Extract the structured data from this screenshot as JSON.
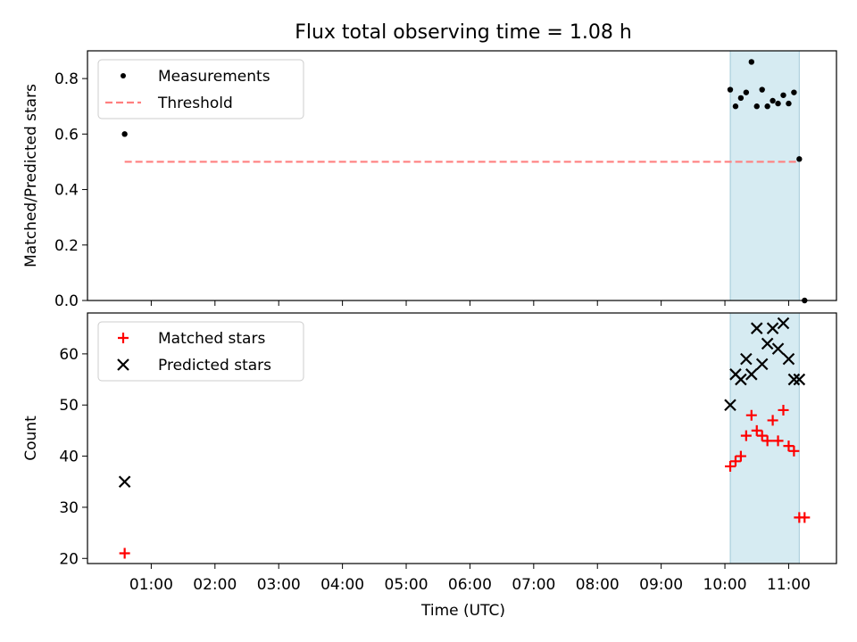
{
  "chart_data": [
    {
      "type": "scatter",
      "title": "Flux total observing time = 1.08 h",
      "ylabel": "Matched/Predicted stars",
      "xlim": [
        "00:00",
        "11:45"
      ],
      "ylim": [
        0,
        0.9
      ],
      "yticks": [
        "0.0",
        "0.2",
        "0.4",
        "0.6",
        "0.8"
      ],
      "shaded_interval": [
        "10:05",
        "11:10"
      ],
      "shade_color": "#add8e6",
      "legend_position": "upper-left",
      "series": [
        {
          "name": "Measurements",
          "marker": "dot",
          "color": "#000000",
          "points": [
            [
              "00:35",
              0.6
            ],
            [
              "10:05",
              0.76
            ],
            [
              "10:10",
              0.7
            ],
            [
              "10:15",
              0.73
            ],
            [
              "10:20",
              0.75
            ],
            [
              "10:25",
              0.86
            ],
            [
              "10:30",
              0.7
            ],
            [
              "10:35",
              0.76
            ],
            [
              "10:40",
              0.7
            ],
            [
              "10:45",
              0.72
            ],
            [
              "10:50",
              0.71
            ],
            [
              "10:55",
              0.74
            ],
            [
              "11:00",
              0.71
            ],
            [
              "11:05",
              0.75
            ],
            [
              "11:10",
              0.51
            ],
            [
              "11:15",
              0.0
            ]
          ]
        },
        {
          "name": "Threshold",
          "style": "dashed-line",
          "color": "#ff7f7f",
          "points": [
            [
              "00:35",
              0.5
            ],
            [
              "11:10",
              0.5
            ]
          ]
        }
      ]
    },
    {
      "type": "scatter",
      "xlabel": "Time (UTC)",
      "ylabel": "Count",
      "xlim": [
        "00:00",
        "11:45"
      ],
      "ylim": [
        19,
        68
      ],
      "yticks": [
        "20",
        "30",
        "40",
        "50",
        "60"
      ],
      "xticks": [
        "01:00",
        "02:00",
        "03:00",
        "04:00",
        "05:00",
        "06:00",
        "07:00",
        "08:00",
        "09:00",
        "10:00",
        "11:00"
      ],
      "shaded_interval": [
        "10:05",
        "11:10"
      ],
      "shade_color": "#add8e6",
      "legend_position": "upper-left",
      "series": [
        {
          "name": "Matched stars",
          "marker": "plus",
          "color": "#ff0000",
          "points": [
            [
              "00:35",
              21
            ],
            [
              "10:05",
              38
            ],
            [
              "10:10",
              39
            ],
            [
              "10:15",
              40
            ],
            [
              "10:20",
              44
            ],
            [
              "10:25",
              48
            ],
            [
              "10:30",
              45
            ],
            [
              "10:35",
              44
            ],
            [
              "10:40",
              43
            ],
            [
              "10:45",
              47
            ],
            [
              "10:50",
              43
            ],
            [
              "10:55",
              49
            ],
            [
              "11:00",
              42
            ],
            [
              "11:05",
              41
            ],
            [
              "11:10",
              28
            ],
            [
              "11:15",
              28
            ]
          ]
        },
        {
          "name": "Predicted stars",
          "marker": "x",
          "color": "#000000",
          "points": [
            [
              "00:35",
              35
            ],
            [
              "10:05",
              50
            ],
            [
              "10:10",
              56
            ],
            [
              "10:15",
              55
            ],
            [
              "10:20",
              59
            ],
            [
              "10:25",
              56
            ],
            [
              "10:30",
              65
            ],
            [
              "10:35",
              58
            ],
            [
              "10:40",
              62
            ],
            [
              "10:45",
              65
            ],
            [
              "10:50",
              61
            ],
            [
              "10:55",
              66
            ],
            [
              "11:00",
              59
            ],
            [
              "11:05",
              55
            ],
            [
              "11:10",
              55
            ]
          ]
        }
      ]
    }
  ]
}
